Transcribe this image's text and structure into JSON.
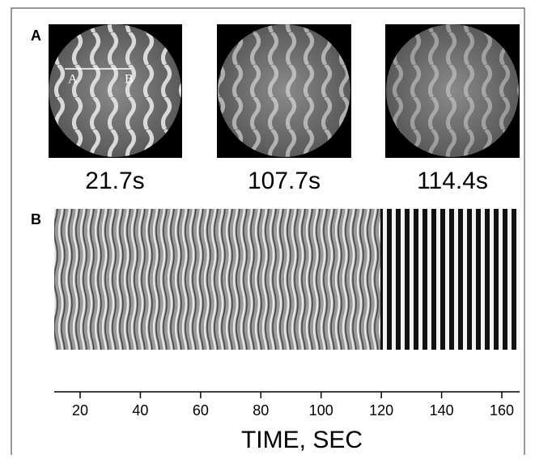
{
  "panel_a": {
    "label": "A",
    "line_labels": [
      "A",
      "B"
    ],
    "times": [
      "21.7s",
      "107.7s",
      "114.4s"
    ]
  },
  "panel_b": {
    "label": "B",
    "axis": {
      "xlim": [
        11.4,
        165.9
      ],
      "xticks": [
        20,
        40,
        60,
        80,
        100,
        120,
        140,
        160
      ],
      "title": "TIME, SEC"
    }
  }
}
